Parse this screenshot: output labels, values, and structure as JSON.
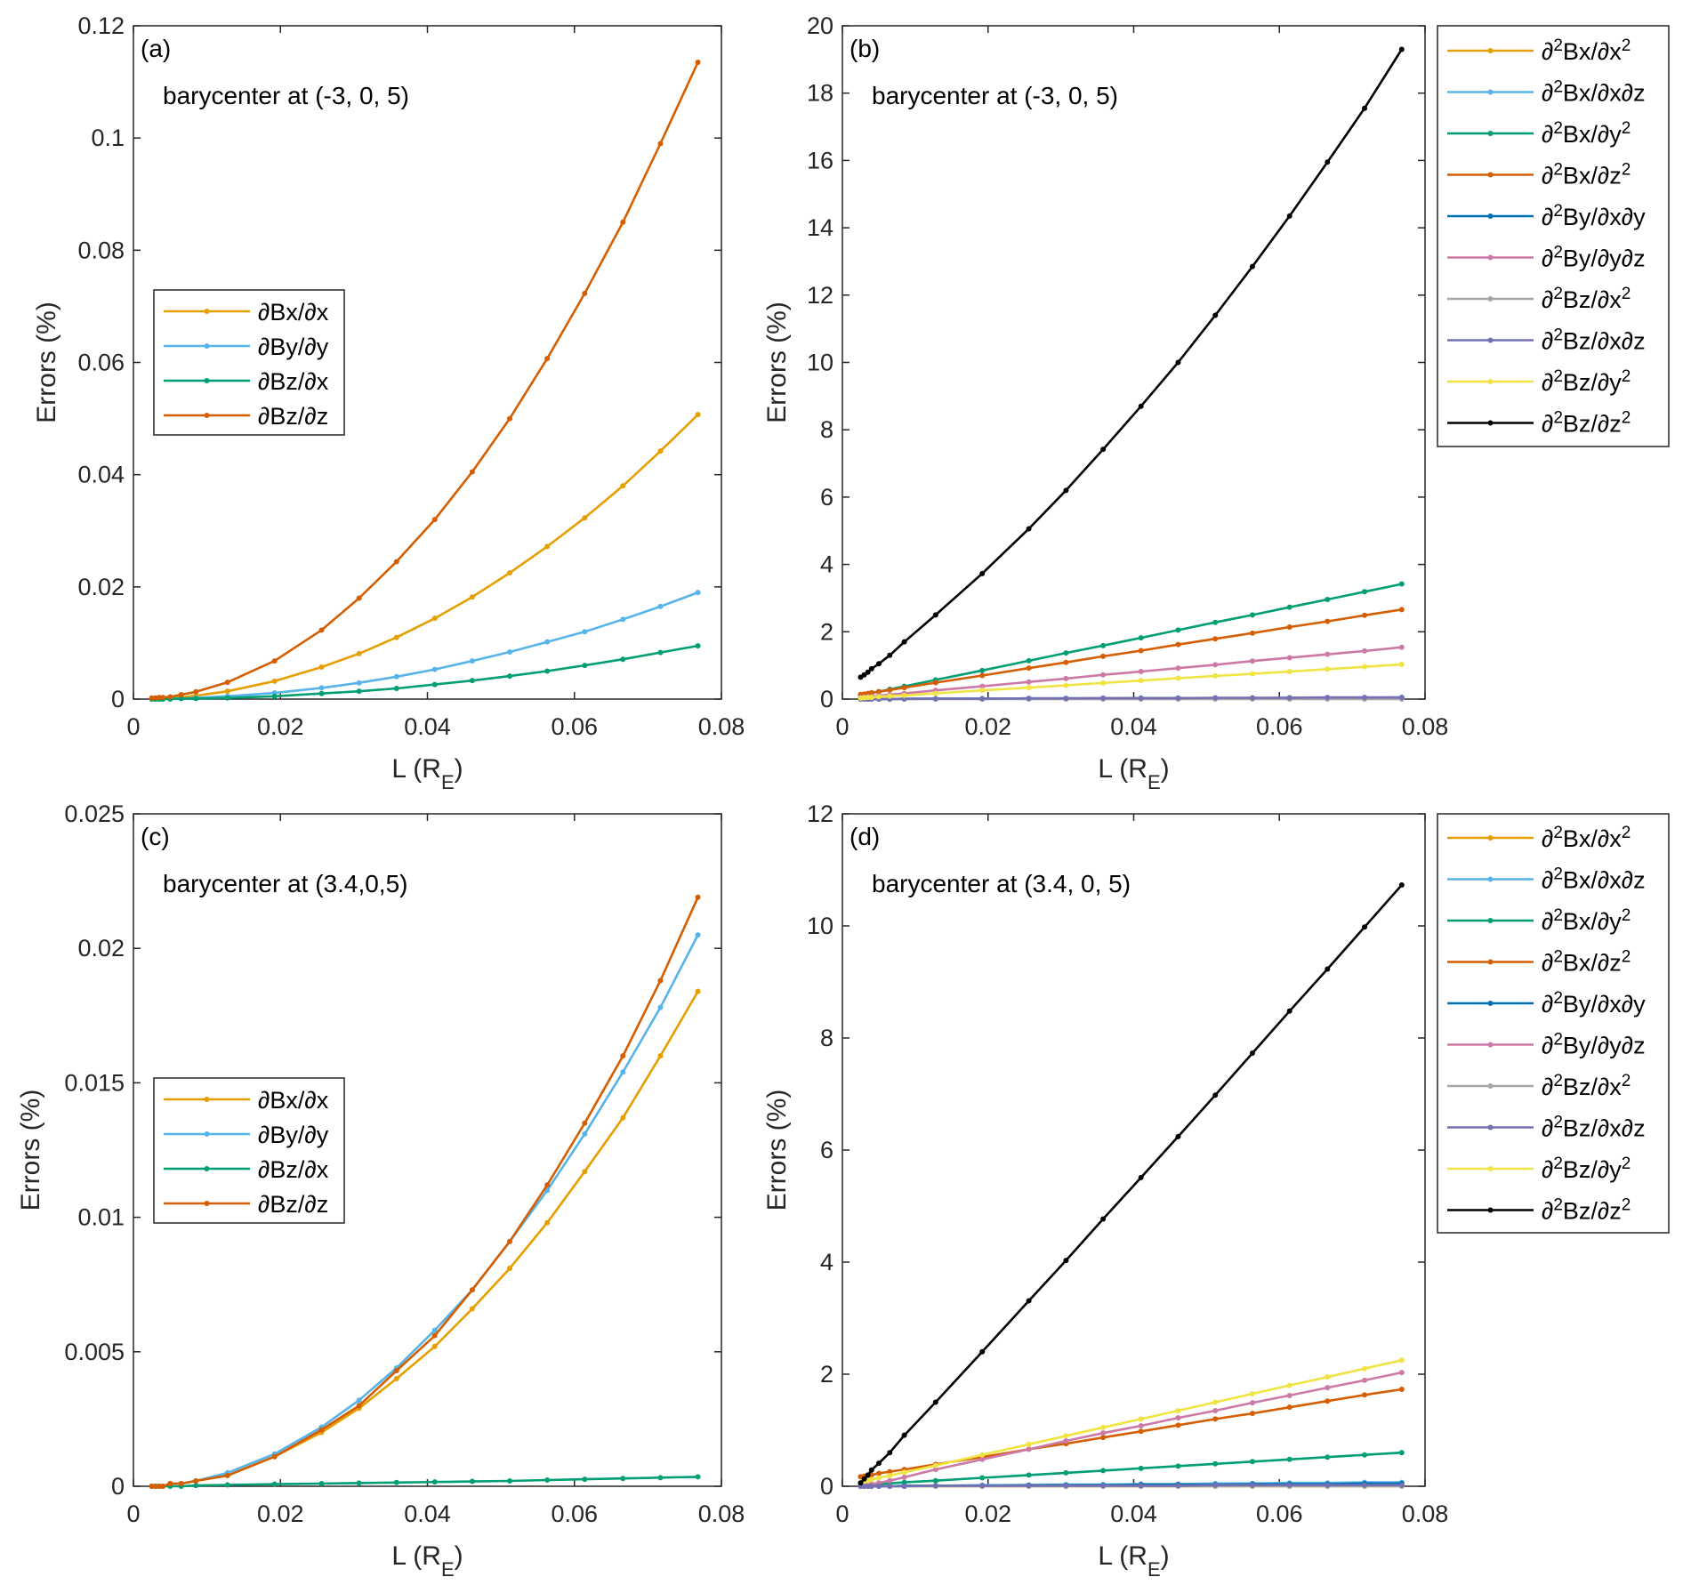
{
  "chart_data": [
    {
      "panel": "(a)",
      "type": "line",
      "annotation": "barycenter at (-3, 0, 5)",
      "xlabel": "L (R_E)",
      "ylabel": "Errors (%)",
      "xlim": [
        0,
        0.08
      ],
      "ylim": [
        0,
        0.12
      ],
      "xticks": [
        "0",
        "0.02",
        "0.04",
        "0.06",
        "0.08"
      ],
      "xtick_values": [
        0,
        0.02,
        0.04,
        0.06,
        0.08
      ],
      "yticks": [
        "0",
        "0.02",
        "0.04",
        "0.06",
        "0.08",
        "0.1",
        "0.12"
      ],
      "ytick_values": [
        0,
        0.02,
        0.04,
        0.06,
        0.08,
        0.1,
        0.12
      ],
      "legend_placement": "center-left",
      "grid": false,
      "x": [
        0.0025,
        0.003,
        0.0035,
        0.004,
        0.005,
        0.0065,
        0.0085,
        0.0128,
        0.0192,
        0.0256,
        0.0307,
        0.0358,
        0.041,
        0.0461,
        0.0512,
        0.0563,
        0.0614,
        0.0666,
        0.0717,
        0.0768
      ],
      "series": [
        {
          "name": "∂Bx/∂x",
          "color": "#E69F00",
          "values": [
            0.0001,
            0.0001,
            0.0001,
            0.0002,
            0.0002,
            0.0003,
            0.0006,
            0.0014,
            0.0032,
            0.0057,
            0.0081,
            0.011,
            0.0144,
            0.0182,
            0.0225,
            0.0272,
            0.0323,
            0.038,
            0.0442,
            0.0507
          ]
        },
        {
          "name": "∂By/∂y",
          "color": "#56B4E9",
          "values": [
            0,
            0,
            0,
            0.0001,
            0.0001,
            0.0001,
            0.0002,
            0.0005,
            0.0011,
            0.002,
            0.0029,
            0.004,
            0.0053,
            0.0068,
            0.0084,
            0.0102,
            0.012,
            0.0142,
            0.0165,
            0.019
          ]
        },
        {
          "name": "∂Bz/∂x",
          "color": "#009E73",
          "values": [
            0,
            0,
            0,
            0,
            0,
            0.0001,
            0.0001,
            0.0002,
            0.0005,
            0.001,
            0.0014,
            0.0019,
            0.0026,
            0.0033,
            0.0041,
            0.005,
            0.006,
            0.0071,
            0.0083,
            0.0095
          ]
        },
        {
          "name": "∂Bz/∂z",
          "color": "#D55E00",
          "values": [
            0.0002,
            0.0002,
            0.0003,
            0.0003,
            0.0004,
            0.0008,
            0.0013,
            0.003,
            0.0068,
            0.0123,
            0.018,
            0.0245,
            0.032,
            0.0405,
            0.05,
            0.0607,
            0.0723,
            0.085,
            0.099,
            0.1135
          ]
        }
      ]
    },
    {
      "panel": "(b)",
      "type": "line",
      "annotation": "barycenter at (-3, 0, 5)",
      "xlabel": "L (R_E)",
      "ylabel": "Errors (%)",
      "xlim": [
        0,
        0.08
      ],
      "ylim": [
        0,
        20
      ],
      "xticks": [
        "0",
        "0.02",
        "0.04",
        "0.06",
        "0.08"
      ],
      "xtick_values": [
        0,
        0.02,
        0.04,
        0.06,
        0.08
      ],
      "yticks": [
        "0",
        "2",
        "4",
        "6",
        "8",
        "10",
        "12",
        "14",
        "16",
        "18",
        "20"
      ],
      "ytick_values": [
        0,
        2,
        4,
        6,
        8,
        10,
        12,
        14,
        16,
        18,
        20
      ],
      "legend_placement": "outside-right",
      "grid": false,
      "x": [
        0.0025,
        0.003,
        0.0035,
        0.004,
        0.005,
        0.0065,
        0.0085,
        0.0128,
        0.0192,
        0.0256,
        0.0307,
        0.0358,
        0.041,
        0.0461,
        0.0512,
        0.0563,
        0.0614,
        0.0666,
        0.0717,
        0.0768
      ],
      "series": [
        {
          "name": "∂²Bx/∂x²",
          "color": "#E69F00",
          "values": [
            0,
            0,
            0,
            0,
            0,
            0,
            0,
            0.01,
            0.01,
            0.01,
            0.01,
            0.01,
            0.01,
            0.02,
            0.02,
            0.02,
            0.02,
            0.02,
            0.02,
            0.02
          ]
        },
        {
          "name": "∂²Bx/∂x∂z",
          "color": "#56B4E9",
          "values": [
            0,
            0,
            0,
            0,
            0,
            0,
            0,
            0.01,
            0.01,
            0.01,
            0.02,
            0.02,
            0.02,
            0.02,
            0.03,
            0.03,
            0.03,
            0.03,
            0.04,
            0.04
          ]
        },
        {
          "name": "∂²Bx/∂y²",
          "color": "#009E73",
          "values": [
            0.11,
            0.13,
            0.16,
            0.18,
            0.22,
            0.29,
            0.38,
            0.57,
            0.85,
            1.14,
            1.37,
            1.59,
            1.82,
            2.05,
            2.28,
            2.5,
            2.73,
            2.96,
            3.19,
            3.42
          ]
        },
        {
          "name": "∂²Bx/∂z²",
          "color": "#D55E00",
          "values": [
            0.14,
            0.15,
            0.17,
            0.19,
            0.22,
            0.27,
            0.34,
            0.49,
            0.7,
            0.92,
            1.09,
            1.27,
            1.44,
            1.62,
            1.79,
            1.96,
            2.14,
            2.31,
            2.49,
            2.66
          ]
        },
        {
          "name": "∂²By/∂x∂y",
          "color": "#0072B2",
          "values": [
            0,
            0,
            0,
            0,
            0,
            0,
            0.01,
            0.01,
            0.01,
            0.02,
            0.02,
            0.02,
            0.03,
            0.03,
            0.03,
            0.03,
            0.04,
            0.04,
            0.04,
            0.05
          ]
        },
        {
          "name": "∂²By/∂y∂z",
          "color": "#CC79A7",
          "values": [
            0.05,
            0.06,
            0.07,
            0.08,
            0.1,
            0.13,
            0.17,
            0.26,
            0.38,
            0.51,
            0.61,
            0.72,
            0.82,
            0.92,
            1.02,
            1.13,
            1.23,
            1.33,
            1.43,
            1.54
          ]
        },
        {
          "name": "∂²Bz/∂x²",
          "color": "#A6A6A6",
          "values": [
            0,
            0,
            0,
            0,
            0,
            0,
            0,
            0,
            0,
            0,
            0,
            0,
            0,
            0,
            0,
            0,
            0,
            0,
            0,
            0
          ]
        },
        {
          "name": "∂²Bz/∂x∂z",
          "color": "#7570B3",
          "values": [
            0,
            0,
            0,
            0,
            0,
            0,
            0.01,
            0.01,
            0.01,
            0.02,
            0.02,
            0.03,
            0.03,
            0.03,
            0.04,
            0.04,
            0.04,
            0.05,
            0.05,
            0.05
          ]
        },
        {
          "name": "∂²Bz/∂y²",
          "color": "#F0E442",
          "values": [
            0.03,
            0.04,
            0.05,
            0.05,
            0.07,
            0.09,
            0.11,
            0.17,
            0.26,
            0.34,
            0.41,
            0.48,
            0.55,
            0.62,
            0.69,
            0.75,
            0.82,
            0.89,
            0.96,
            1.03
          ]
        },
        {
          "name": "∂²Bz/∂z²",
          "color": "#000000",
          "values": [
            0.65,
            0.72,
            0.8,
            0.9,
            1.05,
            1.3,
            1.7,
            2.5,
            3.73,
            5.06,
            6.2,
            7.42,
            8.7,
            10.0,
            11.4,
            12.85,
            14.35,
            15.95,
            17.55,
            19.3
          ]
        }
      ]
    },
    {
      "panel": "(c)",
      "type": "line",
      "annotation": "barycenter at (3.4,0,5)",
      "xlabel": "L (R_E)",
      "ylabel": "Errors (%)",
      "xlim": [
        0,
        0.08
      ],
      "ylim": [
        0,
        0.025
      ],
      "xticks": [
        "0",
        "0.02",
        "0.04",
        "0.06",
        "0.08"
      ],
      "xtick_values": [
        0,
        0.02,
        0.04,
        0.06,
        0.08
      ],
      "yticks": [
        "0",
        "0.005",
        "0.01",
        "0.015",
        "0.02",
        "0.025"
      ],
      "ytick_values": [
        0,
        0.005,
        0.01,
        0.015,
        0.02,
        0.025
      ],
      "legend_placement": "center-left",
      "grid": false,
      "x": [
        0.0025,
        0.003,
        0.0035,
        0.004,
        0.005,
        0.0065,
        0.0085,
        0.0128,
        0.0192,
        0.0256,
        0.0307,
        0.0358,
        0.041,
        0.0461,
        0.0512,
        0.0563,
        0.0614,
        0.0666,
        0.0717,
        0.0768
      ],
      "series": [
        {
          "name": "∂Bx/∂x",
          "color": "#E69F00",
          "values": [
            0,
            0,
            0,
            0,
            0.0001,
            0.0001,
            0.0002,
            0.0004,
            0.0011,
            0.002,
            0.0029,
            0.004,
            0.0052,
            0.0066,
            0.0081,
            0.0098,
            0.0117,
            0.0137,
            0.016,
            0.0184
          ]
        },
        {
          "name": "∂By/∂y",
          "color": "#56B4E9",
          "values": [
            0,
            0,
            0,
            0,
            0.0001,
            0.0001,
            0.0002,
            0.0005,
            0.0012,
            0.0022,
            0.0032,
            0.0044,
            0.0058,
            0.0073,
            0.0091,
            0.011,
            0.0131,
            0.0154,
            0.0178,
            0.0205
          ]
        },
        {
          "name": "∂Bz/∂x",
          "color": "#009E73",
          "values": [
            0,
            0,
            0,
            0,
            0,
            0,
            3e-05,
            5e-05,
            8e-05,
            0.0001,
            0.00012,
            0.00014,
            0.00016,
            0.00018,
            0.0002,
            0.00023,
            0.00026,
            0.00029,
            0.00032,
            0.00035
          ]
        },
        {
          "name": "∂Bz/∂z",
          "color": "#D55E00",
          "values": [
            0,
            0,
            0,
            0,
            0.0001,
            0.0001,
            0.0002,
            0.0004,
            0.0011,
            0.0021,
            0.003,
            0.0043,
            0.0056,
            0.0073,
            0.0091,
            0.0112,
            0.0135,
            0.016,
            0.0188,
            0.0219
          ]
        }
      ]
    },
    {
      "panel": "(d)",
      "type": "line",
      "annotation": "barycenter at (3.4, 0, 5)",
      "xlabel": "L (R_E)",
      "ylabel": "Errors (%)",
      "xlim": [
        0,
        0.08
      ],
      "ylim": [
        0,
        12
      ],
      "xticks": [
        "0",
        "0.02",
        "0.04",
        "0.06",
        "0.08"
      ],
      "xtick_values": [
        0,
        0.02,
        0.04,
        0.06,
        0.08
      ],
      "yticks": [
        "0",
        "2",
        "4",
        "6",
        "8",
        "10",
        "12"
      ],
      "ytick_values": [
        0,
        2,
        4,
        6,
        8,
        10,
        12
      ],
      "legend_placement": "outside-right",
      "grid": false,
      "x": [
        0.0025,
        0.003,
        0.0035,
        0.004,
        0.005,
        0.0065,
        0.0085,
        0.0128,
        0.0192,
        0.0256,
        0.0307,
        0.0358,
        0.041,
        0.0461,
        0.0512,
        0.0563,
        0.0614,
        0.0666,
        0.0717,
        0.0768
      ],
      "series": [
        {
          "name": "∂²Bx/∂x²",
          "color": "#E69F00",
          "values": [
            0,
            0,
            0,
            0,
            0,
            0,
            0,
            0,
            0,
            0,
            0,
            0,
            0,
            0,
            0,
            0,
            0,
            0,
            0,
            0
          ]
        },
        {
          "name": "∂²Bx/∂x∂z",
          "color": "#56B4E9",
          "values": [
            0,
            0,
            0,
            0,
            0,
            0,
            0.01,
            0.01,
            0.02,
            0.02,
            0.03,
            0.03,
            0.04,
            0.04,
            0.05,
            0.05,
            0.06,
            0.06,
            0.07,
            0.07
          ]
        },
        {
          "name": "∂²Bx/∂y²",
          "color": "#009E73",
          "values": [
            0.02,
            0.02,
            0.03,
            0.03,
            0.04,
            0.05,
            0.07,
            0.1,
            0.15,
            0.2,
            0.24,
            0.28,
            0.32,
            0.36,
            0.4,
            0.44,
            0.48,
            0.52,
            0.56,
            0.6
          ]
        },
        {
          "name": "∂²Bx/∂z²",
          "color": "#D55E00",
          "values": [
            0.17,
            0.18,
            0.19,
            0.2,
            0.23,
            0.26,
            0.3,
            0.39,
            0.52,
            0.66,
            0.76,
            0.87,
            0.98,
            1.09,
            1.2,
            1.3,
            1.41,
            1.52,
            1.63,
            1.73
          ]
        },
        {
          "name": "∂²By/∂x∂y",
          "color": "#0072B2",
          "values": [
            0,
            0,
            0,
            0,
            0,
            0,
            0.01,
            0.01,
            0.01,
            0.02,
            0.02,
            0.02,
            0.03,
            0.03,
            0.03,
            0.04,
            0.04,
            0.04,
            0.05,
            0.05
          ]
        },
        {
          "name": "∂²By/∂y∂z",
          "color": "#CC79A7",
          "values": [
            0.01,
            0.02,
            0.03,
            0.04,
            0.06,
            0.1,
            0.16,
            0.3,
            0.48,
            0.66,
            0.81,
            0.95,
            1.08,
            1.22,
            1.35,
            1.49,
            1.62,
            1.76,
            1.89,
            2.03
          ]
        },
        {
          "name": "∂²Bz/∂x²",
          "color": "#A6A6A6",
          "values": [
            0,
            0,
            0,
            0,
            0,
            0,
            0,
            0,
            0,
            0,
            0,
            0,
            0,
            0,
            0,
            0,
            0,
            0,
            0,
            0
          ]
        },
        {
          "name": "∂²Bz/∂x∂z",
          "color": "#7570B3",
          "values": [
            0,
            0,
            0,
            0,
            0,
            0,
            0,
            0.01,
            0.01,
            0.01,
            0.01,
            0.01,
            0.01,
            0.01,
            0.02,
            0.02,
            0.02,
            0.02,
            0.02,
            0.02
          ]
        },
        {
          "name": "∂²Bz/∂y²",
          "color": "#F0E442",
          "values": [
            0.07,
            0.09,
            0.1,
            0.12,
            0.15,
            0.19,
            0.25,
            0.37,
            0.56,
            0.75,
            0.9,
            1.05,
            1.2,
            1.35,
            1.5,
            1.65,
            1.8,
            1.95,
            2.1,
            2.25
          ]
        },
        {
          "name": "∂²Bz/∂z²",
          "color": "#000000",
          "values": [
            0.06,
            0.13,
            0.2,
            0.29,
            0.41,
            0.6,
            0.91,
            1.5,
            2.4,
            3.31,
            4.03,
            4.77,
            5.51,
            6.24,
            6.98,
            7.73,
            8.48,
            9.23,
            9.98,
            10.73
          ]
        }
      ]
    }
  ]
}
